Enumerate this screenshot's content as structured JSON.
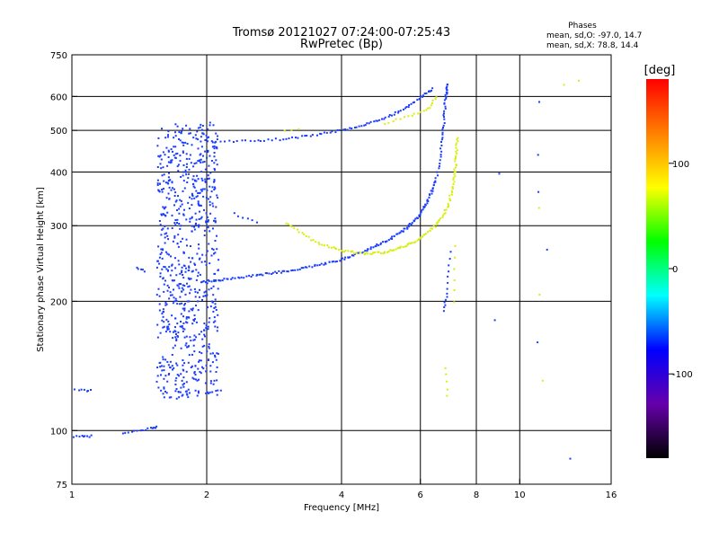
{
  "chart_data": {
    "type": "scatter",
    "title": "Tromsø 20121027 07:24:00-07:25:43",
    "subtitle": "RwPretec (Bp)",
    "xlabel": "Frequency [MHz]",
    "ylabel": "Stationary phase Virtual Height [km]",
    "x_scale": "log",
    "y_scale": "log",
    "xlim": [
      1,
      16
    ],
    "ylim": [
      75,
      750
    ],
    "x_ticks": [
      1,
      2,
      4,
      6,
      8,
      10,
      16
    ],
    "x_tick_labels": [
      "1",
      "2",
      "4",
      "6",
      "8",
      "10",
      "16"
    ],
    "y_ticks": [
      75,
      100,
      200,
      300,
      400,
      500,
      600,
      750
    ],
    "y_tick_labels": [
      "75",
      "100",
      "200",
      "300",
      "400",
      "500",
      "600",
      "750"
    ],
    "x_gridlines": [
      2,
      4,
      6,
      8,
      10
    ],
    "y_gridlines": [
      100,
      200,
      300,
      400,
      500,
      600
    ],
    "grid": true,
    "legend": {
      "title": "Phases",
      "line1": "mean, sd,O:  -97.0, 14.7",
      "line2": "mean, sd,X:  78.8, 14.4",
      "placement": "top-right"
    },
    "colorbar": {
      "label": "[deg]",
      "range": [
        -180,
        180
      ],
      "ticks": [
        100,
        0,
        -100
      ],
      "tick_labels": [
        "100",
        "0",
        "-100"
      ],
      "colors": [
        "#ff0000",
        "#ff8000",
        "#ffff00",
        "#00ff00",
        "#00ffff",
        "#0000ff",
        "#6600aa",
        "#000000"
      ]
    },
    "series": [
      {
        "name": "O",
        "color": "#1a3cff",
        "traces": [
          {
            "kind": "band",
            "f_range": [
              1.55,
              1.9
            ],
            "h_range": [
              118,
              520
            ],
            "count": 520
          },
          {
            "kind": "band",
            "f_range": [
              1.9,
              2.12
            ],
            "h_range": [
              120,
              520
            ],
            "count": 260
          },
          {
            "kind": "curve",
            "f": [
              1.95,
              2.2,
              2.6,
              3.0,
              3.5,
              4.0,
              4.5,
              5.0,
              5.5,
              5.9,
              6.2,
              6.5
            ],
            "h": [
              222,
              225,
              230,
              235,
              242,
              250,
              262,
              275,
              292,
              312,
              340,
              380
            ],
            "count": 160
          },
          {
            "kind": "curve",
            "f": [
              6.5,
              6.65,
              6.75,
              6.8,
              6.85,
              6.9
            ],
            "h": [
              380,
              440,
              500,
              560,
              610,
              640
            ],
            "count": 45
          },
          {
            "kind": "curve",
            "f": [
              2.0,
              2.5,
              3.0,
              3.5,
              4.0,
              4.5,
              5.0,
              5.5,
              6.0,
              6.4
            ],
            "h": [
              470,
              472,
              478,
              488,
              500,
              515,
              535,
              560,
              595,
              625
            ],
            "count": 90
          },
          {
            "kind": "curve",
            "f": [
              1.0,
              1.06,
              1.1
            ],
            "h": [
              97,
              97,
              97
            ],
            "count": 10
          },
          {
            "kind": "curve",
            "f": [
              1.0,
              1.06,
              1.1
            ],
            "h": [
              125,
              124,
              124
            ],
            "count": 8
          },
          {
            "kind": "curve",
            "f": [
              1.3,
              1.4,
              1.5,
              1.55
            ],
            "h": [
              98,
              100,
              101,
              102
            ],
            "count": 16
          },
          {
            "kind": "curve",
            "f": [
              1.4,
              1.45
            ],
            "h": [
              240,
              235
            ],
            "count": 5
          },
          {
            "kind": "curve",
            "f": [
              6.75,
              6.9,
              7.0
            ],
            "h": [
              190,
              210,
              260
            ],
            "count": 14
          },
          {
            "kind": "curve",
            "f": [
              2.3,
              2.6
            ],
            "h": [
              320,
              305
            ],
            "count": 6
          },
          {
            "kind": "curve",
            "f": [
              2.0,
              2.15
            ],
            "h": [
              122,
              124
            ],
            "count": 6
          },
          {
            "kind": "curve",
            "f": [
              8.8,
              9.0
            ],
            "h": [
              180,
              395
            ],
            "count": 2
          },
          {
            "kind": "curve",
            "f": [
              11.0,
              11.0,
              11.0,
              11.5
            ],
            "h": [
              580,
              440,
              360,
              265
            ],
            "count": 4
          },
          {
            "kind": "curve",
            "f": [
              11.0,
              13.0
            ],
            "h": [
              160,
              86
            ],
            "count": 2
          }
        ]
      },
      {
        "name": "X",
        "color": "#d8ee10",
        "traces": [
          {
            "kind": "curve",
            "f": [
              3.0,
              3.5,
              4.0,
              4.5,
              5.0,
              5.5,
              6.0,
              6.5,
              6.9,
              7.1,
              7.2,
              7.25
            ],
            "h": [
              305,
              275,
              262,
              258,
              260,
              268,
              280,
              300,
              330,
              370,
              420,
              480
            ],
            "count": 140
          },
          {
            "kind": "curve",
            "f": [
              5.0,
              5.5,
              6.0,
              6.3,
              6.5
            ],
            "h": [
              520,
              535,
              550,
              565,
              600
            ],
            "count": 20
          },
          {
            "kind": "curve",
            "f": [
              7.1,
              7.15,
              7.2
            ],
            "h": [
              200,
              230,
              270
            ],
            "count": 6
          },
          {
            "kind": "curve",
            "f": [
              3.0,
              3.2
            ],
            "h": [
              500,
              505
            ],
            "count": 3
          },
          {
            "kind": "curve",
            "f": [
              6.8,
              6.9
            ],
            "h": [
              140,
              120
            ],
            "count": 5
          },
          {
            "kind": "curve",
            "f": [
              11.0,
              11.2
            ],
            "h": [
              330,
              130
            ],
            "count": 3
          },
          {
            "kind": "curve",
            "f": [
              13.5,
              12.5
            ],
            "h": [
              650,
              640
            ],
            "count": 2
          }
        ]
      }
    ]
  }
}
